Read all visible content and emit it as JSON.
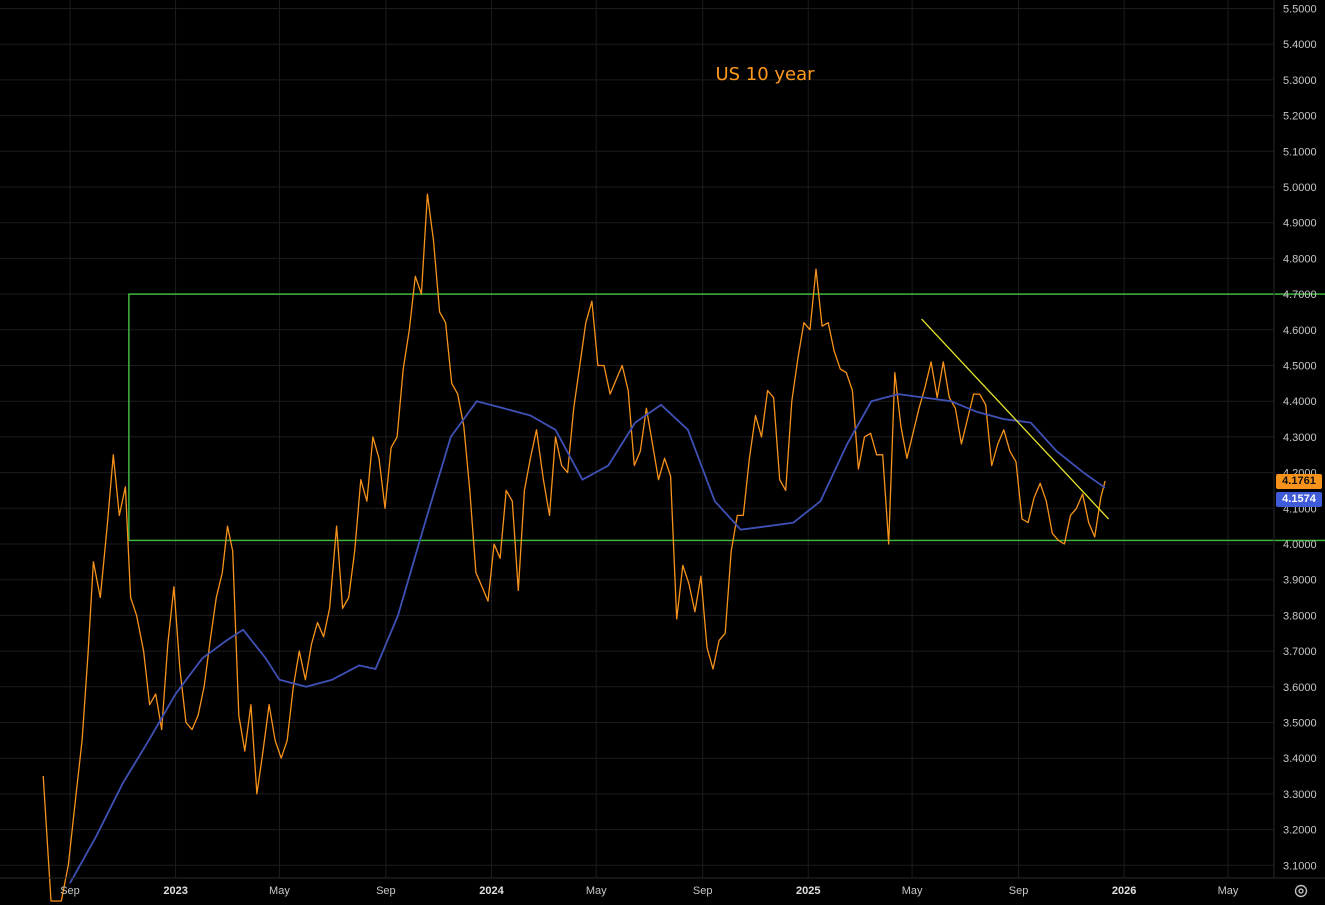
{
  "chart_data": {
    "type": "line",
    "title": "US 10 year",
    "xlabel": "",
    "ylabel": "",
    "ylim": [
      3.05,
      5.52
    ],
    "grid": true,
    "y_ticks": [
      "5.5000",
      "5.4000",
      "5.3000",
      "5.2000",
      "5.1000",
      "5.0000",
      "4.9000",
      "4.8000",
      "4.7000",
      "4.6000",
      "4.5000",
      "4.4000",
      "4.3000",
      "4.2000",
      "4.1000",
      "4.0000",
      "3.9000",
      "3.8000",
      "3.7000",
      "3.6000",
      "3.5000",
      "3.4000",
      "3.3000",
      "3.2000",
      "3.1000"
    ],
    "x_ticks": [
      {
        "label": "Sep",
        "date": "2022-09-01",
        "year": false
      },
      {
        "label": "2023",
        "date": "2023-01-01",
        "year": true
      },
      {
        "label": "May",
        "date": "2023-05-01",
        "year": false
      },
      {
        "label": "Sep",
        "date": "2023-09-01",
        "year": false
      },
      {
        "label": "2024",
        "date": "2024-01-01",
        "year": true
      },
      {
        "label": "May",
        "date": "2024-05-01",
        "year": false
      },
      {
        "label": "Sep",
        "date": "2024-09-01",
        "year": false
      },
      {
        "label": "2025",
        "date": "2025-01-01",
        "year": true
      },
      {
        "label": "May",
        "date": "2025-05-01",
        "year": false
      },
      {
        "label": "Sep",
        "date": "2025-09-01",
        "year": false
      },
      {
        "label": "2026",
        "date": "2026-01-01",
        "year": true
      },
      {
        "label": "May",
        "date": "2026-05-01",
        "year": false
      }
    ],
    "series": [
      {
        "color": "#f7931a",
        "points": [
          [
            "2022-08-01",
            3.35
          ],
          [
            "2022-08-10",
            3.0
          ],
          [
            "2022-08-22",
            3.0
          ],
          [
            "2022-08-30",
            3.1
          ],
          [
            "2022-09-08",
            3.3
          ],
          [
            "2022-09-15",
            3.45
          ],
          [
            "2022-09-22",
            3.7
          ],
          [
            "2022-09-28",
            3.95
          ],
          [
            "2022-10-06",
            3.85
          ],
          [
            "2022-10-14",
            4.05
          ],
          [
            "2022-10-21",
            4.25
          ],
          [
            "2022-10-28",
            4.08
          ],
          [
            "2022-11-04",
            4.16
          ],
          [
            "2022-11-10",
            3.85
          ],
          [
            "2022-11-17",
            3.8
          ],
          [
            "2022-11-25",
            3.7
          ],
          [
            "2022-12-02",
            3.55
          ],
          [
            "2022-12-09",
            3.58
          ],
          [
            "2022-12-16",
            3.48
          ],
          [
            "2022-12-23",
            3.72
          ],
          [
            "2022-12-30",
            3.88
          ],
          [
            "2023-01-06",
            3.65
          ],
          [
            "2023-01-13",
            3.5
          ],
          [
            "2023-01-20",
            3.48
          ],
          [
            "2023-01-27",
            3.52
          ],
          [
            "2023-02-03",
            3.6
          ],
          [
            "2023-02-10",
            3.73
          ],
          [
            "2023-02-17",
            3.85
          ],
          [
            "2023-02-24",
            3.92
          ],
          [
            "2023-03-02",
            4.05
          ],
          [
            "2023-03-08",
            3.98
          ],
          [
            "2023-03-15",
            3.52
          ],
          [
            "2023-03-22",
            3.42
          ],
          [
            "2023-03-29",
            3.55
          ],
          [
            "2023-04-05",
            3.3
          ],
          [
            "2023-04-12",
            3.42
          ],
          [
            "2023-04-19",
            3.55
          ],
          [
            "2023-04-26",
            3.45
          ],
          [
            "2023-05-03",
            3.4
          ],
          [
            "2023-05-10",
            3.45
          ],
          [
            "2023-05-17",
            3.6
          ],
          [
            "2023-05-24",
            3.7
          ],
          [
            "2023-05-31",
            3.62
          ],
          [
            "2023-06-07",
            3.72
          ],
          [
            "2023-06-14",
            3.78
          ],
          [
            "2023-06-21",
            3.74
          ],
          [
            "2023-06-28",
            3.82
          ],
          [
            "2023-07-06",
            4.05
          ],
          [
            "2023-07-13",
            3.82
          ],
          [
            "2023-07-20",
            3.85
          ],
          [
            "2023-07-27",
            3.98
          ],
          [
            "2023-08-03",
            4.18
          ],
          [
            "2023-08-10",
            4.12
          ],
          [
            "2023-08-17",
            4.3
          ],
          [
            "2023-08-24",
            4.24
          ],
          [
            "2023-08-31",
            4.1
          ],
          [
            "2023-09-07",
            4.27
          ],
          [
            "2023-09-14",
            4.3
          ],
          [
            "2023-09-21",
            4.49
          ],
          [
            "2023-09-28",
            4.6
          ],
          [
            "2023-10-05",
            4.75
          ],
          [
            "2023-10-12",
            4.7
          ],
          [
            "2023-10-19",
            4.98
          ],
          [
            "2023-10-26",
            4.85
          ],
          [
            "2023-11-02",
            4.65
          ],
          [
            "2023-11-09",
            4.62
          ],
          [
            "2023-11-16",
            4.45
          ],
          [
            "2023-11-23",
            4.42
          ],
          [
            "2023-11-30",
            4.33
          ],
          [
            "2023-12-07",
            4.15
          ],
          [
            "2023-12-14",
            3.92
          ],
          [
            "2023-12-21",
            3.88
          ],
          [
            "2023-12-28",
            3.84
          ],
          [
            "2024-01-04",
            4.0
          ],
          [
            "2024-01-11",
            3.96
          ],
          [
            "2024-01-18",
            4.15
          ],
          [
            "2024-01-25",
            4.12
          ],
          [
            "2024-02-01",
            3.87
          ],
          [
            "2024-02-08",
            4.15
          ],
          [
            "2024-02-15",
            4.24
          ],
          [
            "2024-02-22",
            4.32
          ],
          [
            "2024-03-01",
            4.18
          ],
          [
            "2024-03-08",
            4.08
          ],
          [
            "2024-03-15",
            4.3
          ],
          [
            "2024-03-22",
            4.22
          ],
          [
            "2024-03-29",
            4.2
          ],
          [
            "2024-04-05",
            4.38
          ],
          [
            "2024-04-12",
            4.5
          ],
          [
            "2024-04-19",
            4.62
          ],
          [
            "2024-04-26",
            4.68
          ],
          [
            "2024-05-03",
            4.5
          ],
          [
            "2024-05-10",
            4.5
          ],
          [
            "2024-05-17",
            4.42
          ],
          [
            "2024-05-24",
            4.46
          ],
          [
            "2024-05-31",
            4.5
          ],
          [
            "2024-06-07",
            4.43
          ],
          [
            "2024-06-14",
            4.22
          ],
          [
            "2024-06-21",
            4.26
          ],
          [
            "2024-06-28",
            4.38
          ],
          [
            "2024-07-05",
            4.28
          ],
          [
            "2024-07-12",
            4.18
          ],
          [
            "2024-07-19",
            4.24
          ],
          [
            "2024-07-26",
            4.19
          ],
          [
            "2024-08-02",
            3.79
          ],
          [
            "2024-08-09",
            3.94
          ],
          [
            "2024-08-16",
            3.89
          ],
          [
            "2024-08-23",
            3.81
          ],
          [
            "2024-08-30",
            3.91
          ],
          [
            "2024-09-06",
            3.71
          ],
          [
            "2024-09-13",
            3.65
          ],
          [
            "2024-09-20",
            3.73
          ],
          [
            "2024-09-27",
            3.75
          ],
          [
            "2024-10-04",
            3.98
          ],
          [
            "2024-10-11",
            4.08
          ],
          [
            "2024-10-18",
            4.08
          ],
          [
            "2024-10-25",
            4.24
          ],
          [
            "2024-11-01",
            4.36
          ],
          [
            "2024-11-08",
            4.3
          ],
          [
            "2024-11-15",
            4.43
          ],
          [
            "2024-11-22",
            4.41
          ],
          [
            "2024-11-29",
            4.18
          ],
          [
            "2024-12-06",
            4.15
          ],
          [
            "2024-12-13",
            4.4
          ],
          [
            "2024-12-20",
            4.52
          ],
          [
            "2024-12-27",
            4.62
          ],
          [
            "2025-01-03",
            4.6
          ],
          [
            "2025-01-10",
            4.77
          ],
          [
            "2025-01-17",
            4.61
          ],
          [
            "2025-01-24",
            4.62
          ],
          [
            "2025-01-31",
            4.54
          ],
          [
            "2025-02-07",
            4.49
          ],
          [
            "2025-02-14",
            4.48
          ],
          [
            "2025-02-21",
            4.43
          ],
          [
            "2025-02-28",
            4.21
          ],
          [
            "2025-03-07",
            4.3
          ],
          [
            "2025-03-14",
            4.31
          ],
          [
            "2025-03-21",
            4.25
          ],
          [
            "2025-03-28",
            4.25
          ],
          [
            "2025-04-04",
            4.0
          ],
          [
            "2025-04-11",
            4.48
          ],
          [
            "2025-04-18",
            4.33
          ],
          [
            "2025-04-25",
            4.24
          ],
          [
            "2025-05-02",
            4.31
          ],
          [
            "2025-05-09",
            4.38
          ],
          [
            "2025-05-16",
            4.44
          ],
          [
            "2025-05-23",
            4.51
          ],
          [
            "2025-05-30",
            4.41
          ],
          [
            "2025-06-06",
            4.51
          ],
          [
            "2025-06-13",
            4.41
          ],
          [
            "2025-06-20",
            4.38
          ],
          [
            "2025-06-27",
            4.28
          ],
          [
            "2025-07-04",
            4.35
          ],
          [
            "2025-07-11",
            4.42
          ],
          [
            "2025-07-18",
            4.42
          ],
          [
            "2025-07-25",
            4.39
          ],
          [
            "2025-08-01",
            4.22
          ],
          [
            "2025-08-08",
            4.28
          ],
          [
            "2025-08-15",
            4.32
          ],
          [
            "2025-08-22",
            4.26
          ],
          [
            "2025-08-29",
            4.23
          ],
          [
            "2025-09-05",
            4.07
          ],
          [
            "2025-09-12",
            4.06
          ],
          [
            "2025-09-19",
            4.13
          ],
          [
            "2025-09-26",
            4.17
          ],
          [
            "2025-10-03",
            4.12
          ],
          [
            "2025-10-10",
            4.03
          ],
          [
            "2025-10-17",
            4.01
          ],
          [
            "2025-10-24",
            4.0
          ],
          [
            "2025-10-31",
            4.08
          ],
          [
            "2025-11-07",
            4.1
          ],
          [
            "2025-11-14",
            4.14
          ],
          [
            "2025-11-21",
            4.06
          ],
          [
            "2025-11-28",
            4.02
          ],
          [
            "2025-12-05",
            4.13
          ],
          [
            "2025-12-10",
            4.1761
          ]
        ]
      },
      {
        "color": "#3f51b5",
        "points": [
          [
            "2022-09-01",
            3.05
          ],
          [
            "2022-10-01",
            3.18
          ],
          [
            "2022-11-01",
            3.33
          ],
          [
            "2022-12-01",
            3.45
          ],
          [
            "2023-01-01",
            3.58
          ],
          [
            "2023-02-01",
            3.68
          ],
          [
            "2023-03-01",
            3.73
          ],
          [
            "2023-03-20",
            3.76
          ],
          [
            "2023-04-15",
            3.68
          ],
          [
            "2023-05-01",
            3.62
          ],
          [
            "2023-06-01",
            3.6
          ],
          [
            "2023-07-01",
            3.62
          ],
          [
            "2023-08-01",
            3.66
          ],
          [
            "2023-08-20",
            3.65
          ],
          [
            "2023-09-15",
            3.8
          ],
          [
            "2023-10-15",
            4.05
          ],
          [
            "2023-11-15",
            4.3
          ],
          [
            "2023-12-15",
            4.4
          ],
          [
            "2024-01-15",
            4.38
          ],
          [
            "2024-02-15",
            4.36
          ],
          [
            "2024-03-15",
            4.32
          ],
          [
            "2024-04-15",
            4.18
          ],
          [
            "2024-05-15",
            4.22
          ],
          [
            "2024-06-15",
            4.34
          ],
          [
            "2024-07-15",
            4.39
          ],
          [
            "2024-08-15",
            4.32
          ],
          [
            "2024-09-15",
            4.12
          ],
          [
            "2024-10-15",
            4.04
          ],
          [
            "2024-11-15",
            4.05
          ],
          [
            "2024-12-15",
            4.06
          ],
          [
            "2025-01-15",
            4.12
          ],
          [
            "2025-02-15",
            4.28
          ],
          [
            "2025-03-15",
            4.4
          ],
          [
            "2025-04-15",
            4.42
          ],
          [
            "2025-05-15",
            4.41
          ],
          [
            "2025-06-15",
            4.4
          ],
          [
            "2025-07-15",
            4.37
          ],
          [
            "2025-08-15",
            4.35
          ],
          [
            "2025-09-15",
            4.34
          ],
          [
            "2025-10-15",
            4.26
          ],
          [
            "2025-11-15",
            4.2
          ],
          [
            "2025-12-10",
            4.1574
          ]
        ]
      }
    ],
    "annotations": {
      "range_box": {
        "x0": "2022-11-08",
        "x1": "2026-09-28",
        "y0": 4.01,
        "y1": 4.7,
        "color": "#3fb63f"
      },
      "trendline": {
        "x0": "2025-05-12",
        "y0": 4.63,
        "x1": "2025-12-14",
        "y1": 4.07,
        "color": "#e6e62a"
      }
    },
    "last_value": "4.1761",
    "ma_value": "4.1574"
  },
  "ui": {
    "settings_icon": "gear-icon"
  }
}
